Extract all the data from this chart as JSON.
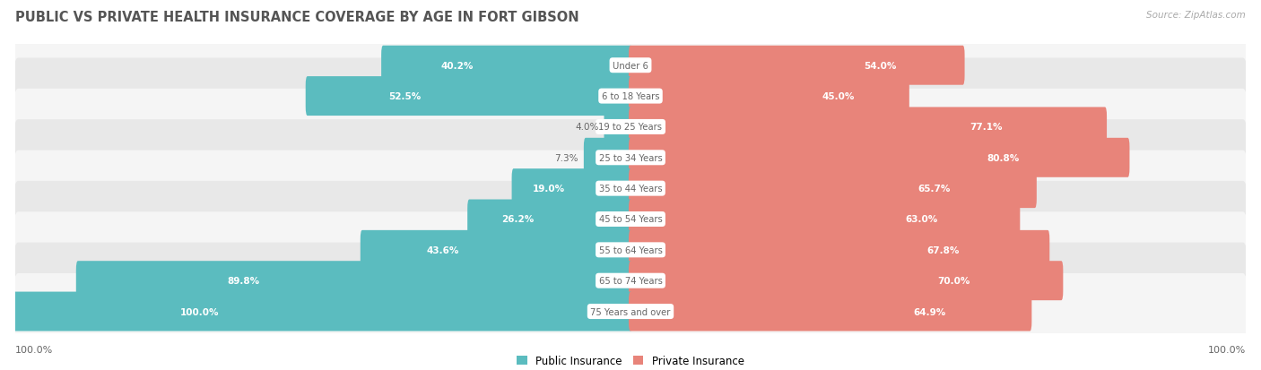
{
  "title": "PUBLIC VS PRIVATE HEALTH INSURANCE COVERAGE BY AGE IN FORT GIBSON",
  "source": "Source: ZipAtlas.com",
  "categories": [
    "Under 6",
    "6 to 18 Years",
    "19 to 25 Years",
    "25 to 34 Years",
    "35 to 44 Years",
    "45 to 54 Years",
    "55 to 64 Years",
    "65 to 74 Years",
    "75 Years and over"
  ],
  "public_values": [
    40.2,
    52.5,
    4.0,
    7.3,
    19.0,
    26.2,
    43.6,
    89.8,
    100.0
  ],
  "private_values": [
    54.0,
    45.0,
    77.1,
    80.8,
    65.7,
    63.0,
    67.8,
    70.0,
    64.9
  ],
  "public_color": "#5bbcbf",
  "private_color": "#e8847a",
  "row_bg_light": "#f5f5f5",
  "row_bg_dark": "#e8e8e8",
  "title_color": "#555555",
  "label_color": "#666666",
  "source_color": "#aaaaaa",
  "legend_labels": [
    "Public Insurance",
    "Private Insurance"
  ],
  "bottom_labels": [
    "100.0%",
    "100.0%"
  ],
  "pub_inside_threshold": 18.0,
  "priv_inside_threshold": 18.0
}
